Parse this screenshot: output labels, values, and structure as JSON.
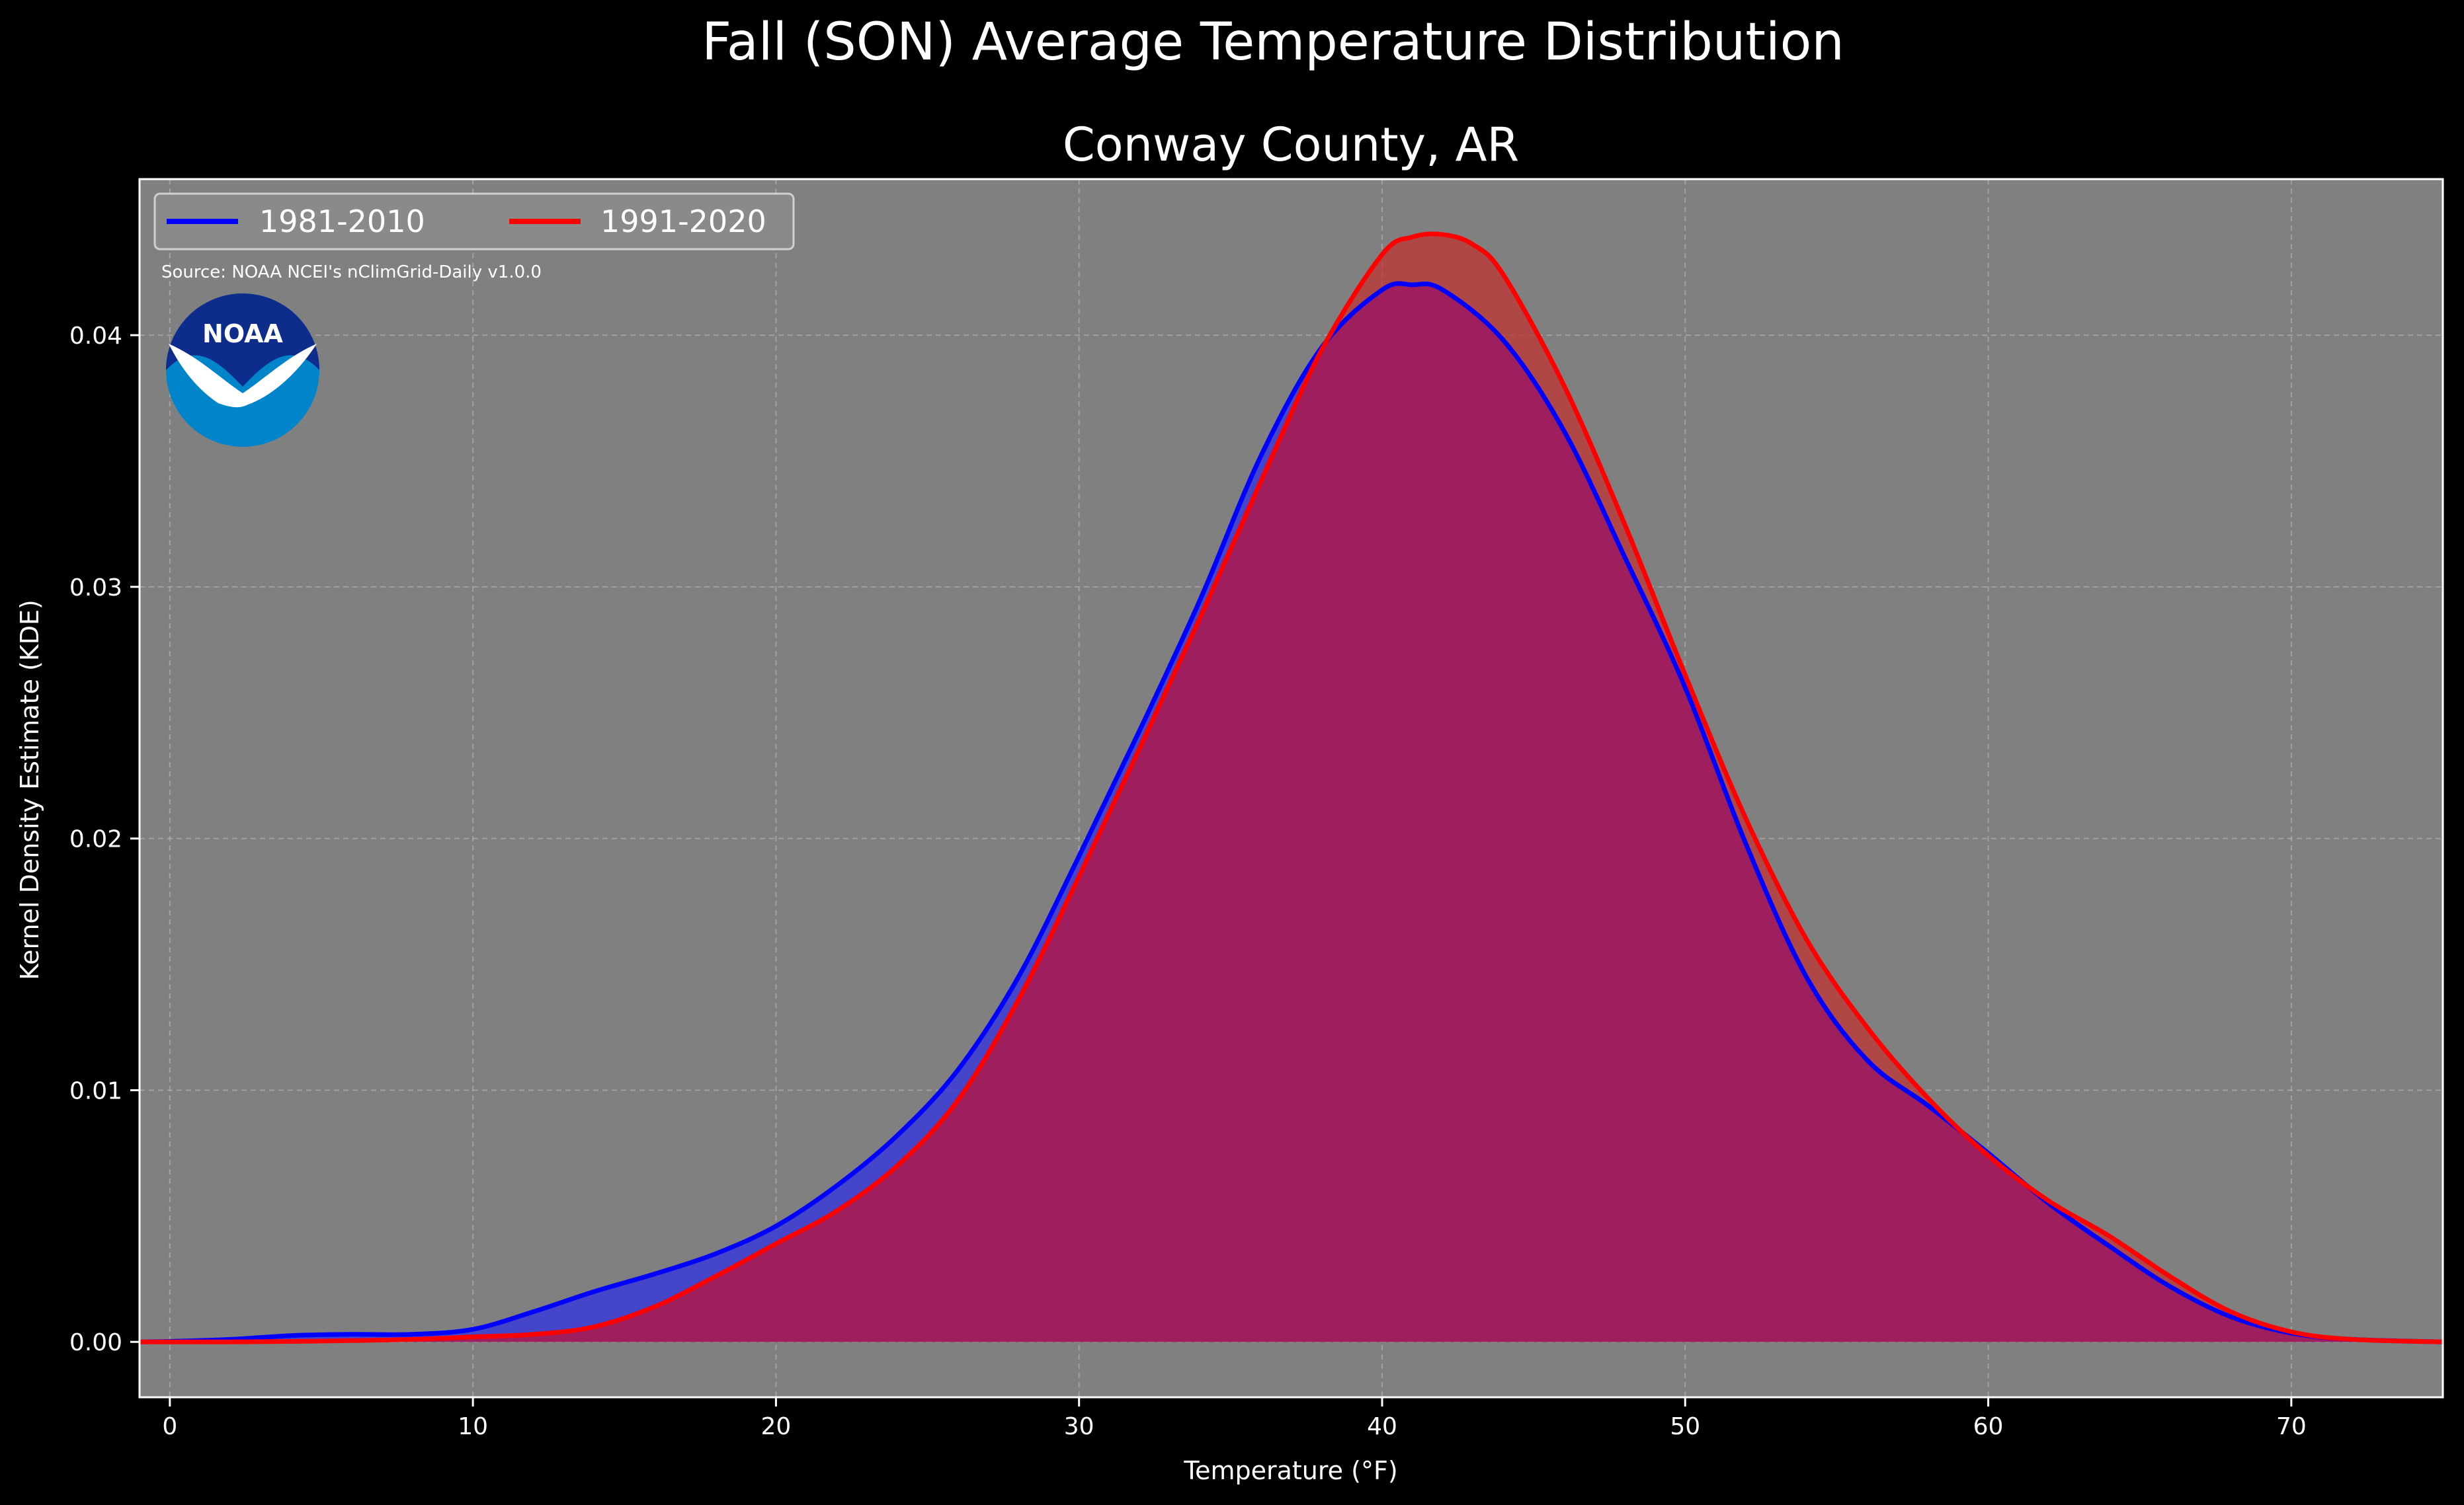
{
  "suptitle": "Fall (SON) Average Temperature Distribution",
  "chart_data": {
    "type": "area",
    "title": "Conway County, AR",
    "xlabel": "Temperature (°F)",
    "ylabel": "Kernel Density Estimate (KDE)",
    "xlim": [
      -1,
      75
    ],
    "ylim": [
      -0.0022,
      0.0462
    ],
    "xticks": [
      0,
      10,
      20,
      30,
      40,
      50,
      60,
      70
    ],
    "yticks": [
      0.0,
      0.01,
      0.02,
      0.03,
      0.04
    ],
    "ytick_labels": [
      "0.00",
      "0.01",
      "0.02",
      "0.03",
      "0.04"
    ],
    "grid": true,
    "legend": "upper-left",
    "series": [
      {
        "name": "1981-2010",
        "color": "#0000ff",
        "fill": "#3b3bd6",
        "x": [
          -1,
          0,
          2,
          4,
          6,
          8,
          10,
          12,
          14,
          16,
          18,
          20,
          22,
          24,
          26,
          28,
          30,
          32,
          34,
          36,
          38,
          40,
          41,
          42,
          44,
          46,
          48,
          50,
          52,
          54,
          56,
          58,
          60,
          62,
          64,
          66,
          68,
          70,
          72,
          75
        ],
        "values": [
          0,
          2e-05,
          0.0001,
          0.00025,
          0.0003,
          0.0003,
          0.0005,
          0.0012,
          0.002,
          0.0027,
          0.0035,
          0.0046,
          0.0062,
          0.0082,
          0.0108,
          0.0145,
          0.0193,
          0.0243,
          0.0295,
          0.0352,
          0.0395,
          0.0418,
          0.042,
          0.0418,
          0.0398,
          0.0362,
          0.0312,
          0.026,
          0.0198,
          0.0145,
          0.0112,
          0.0094,
          0.0075,
          0.0055,
          0.0038,
          0.0022,
          0.001,
          0.00035,
          0.0001,
          0
        ]
      },
      {
        "name": "1991-2020",
        "color": "#ff0000",
        "fill": "#c03030",
        "x": [
          -1,
          0,
          2,
          4,
          6,
          8,
          10,
          12,
          14,
          16,
          18,
          20,
          22,
          24,
          26,
          28,
          30,
          32,
          34,
          36,
          38,
          40,
          41,
          42,
          43,
          44,
          46,
          48,
          50,
          52,
          54,
          56,
          58,
          60,
          62,
          64,
          66,
          68,
          70,
          72,
          75
        ],
        "values": [
          0,
          0,
          0,
          2e-05,
          5e-05,
          0.0001,
          0.0002,
          0.0003,
          0.0006,
          0.0014,
          0.0026,
          0.0039,
          0.0052,
          0.007,
          0.0096,
          0.0136,
          0.0185,
          0.0236,
          0.0288,
          0.0342,
          0.0394,
          0.0432,
          0.0439,
          0.044,
          0.0436,
          0.0424,
          0.038,
          0.0325,
          0.0265,
          0.0208,
          0.016,
          0.0125,
          0.0097,
          0.0074,
          0.0056,
          0.0042,
          0.0026,
          0.0012,
          0.0004,
          0.0001,
          0
        ]
      }
    ],
    "annotations": [
      "Source: NOAA NCEI's nClimGrid-Daily v1.0.0"
    ]
  },
  "logo": {
    "label": "NOAA",
    "icon": "noaa-logo-icon",
    "dark": "#0d2c8c",
    "light": "#0085ca"
  },
  "colors": {
    "background": "#000000",
    "plot_bg": "#808080",
    "overlap": "#9e1d5e"
  }
}
